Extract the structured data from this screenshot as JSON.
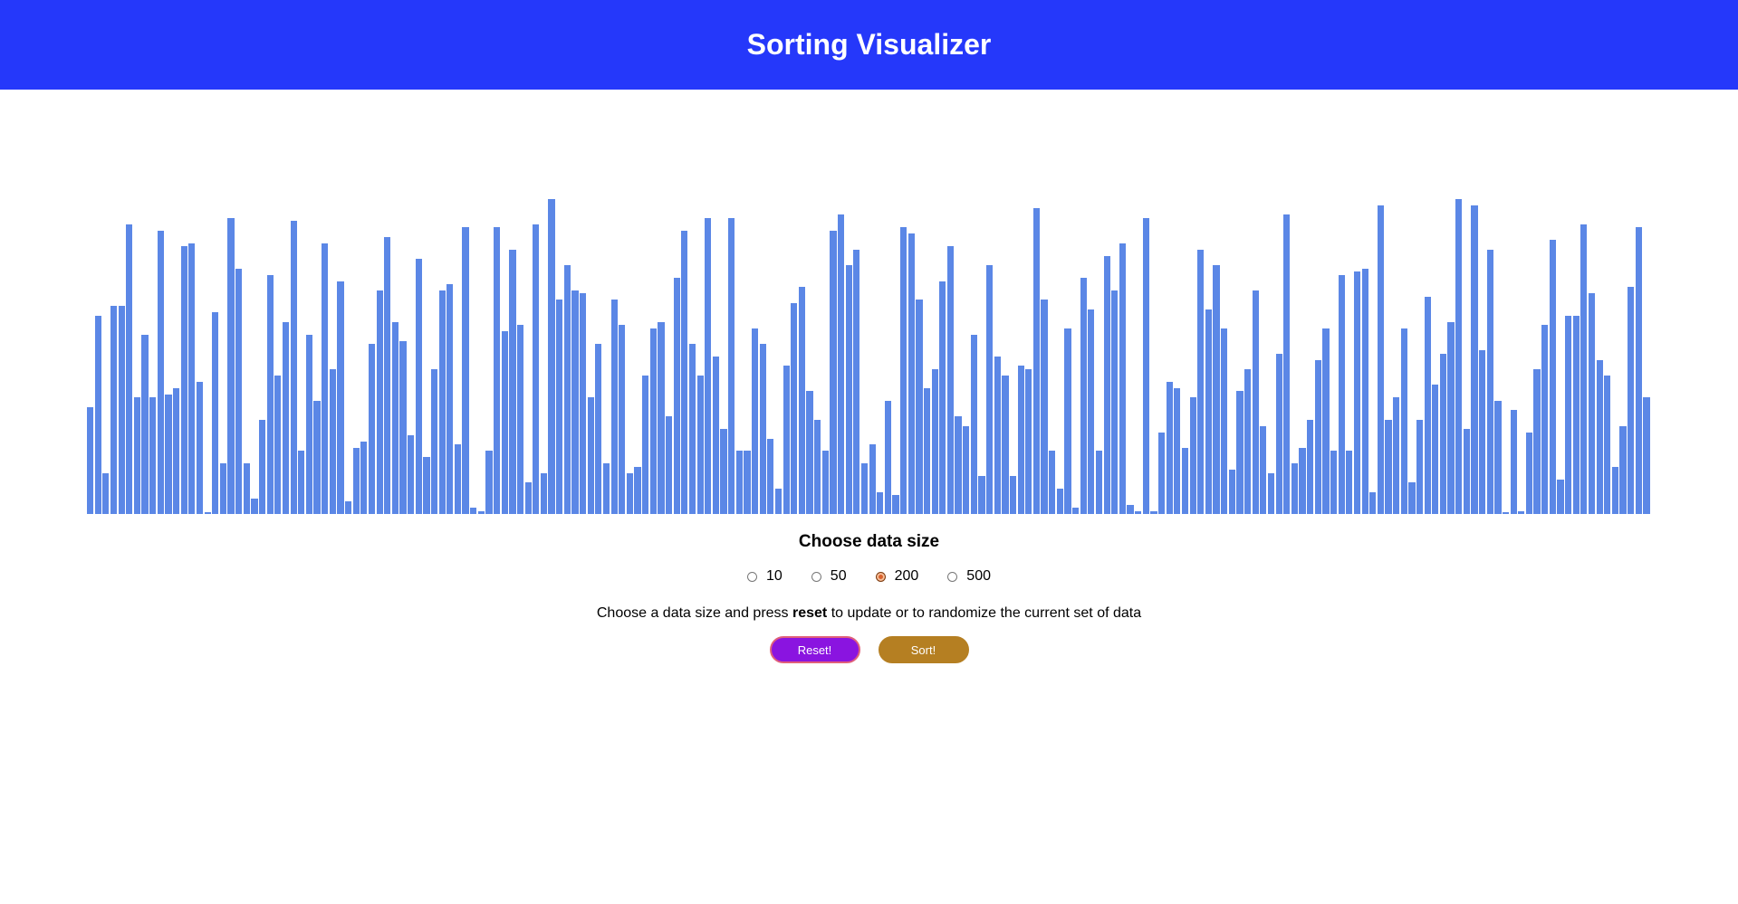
{
  "header": {
    "title": "Sorting Visualizer"
  },
  "colors": {
    "header": "#2538fa",
    "bar": "#5b87e6",
    "reset": "#8a14e0",
    "sort": "#b57f22"
  },
  "chart_data": {
    "type": "bar",
    "max": 1.0,
    "values": [
      0.34,
      0.63,
      0.13,
      0.66,
      0.66,
      0.92,
      0.37,
      0.57,
      0.37,
      0.9,
      0.38,
      0.4,
      0.85,
      0.86,
      0.42,
      0.005,
      0.64,
      0.16,
      0.94,
      0.78,
      0.16,
      0.05,
      0.3,
      0.76,
      0.44,
      0.61,
      0.93,
      0.2,
      0.57,
      0.36,
      0.86,
      0.46,
      0.74,
      0.04,
      0.21,
      0.23,
      0.54,
      0.71,
      0.88,
      0.61,
      0.55,
      0.25,
      0.81,
      0.18,
      0.46,
      0.71,
      0.73,
      0.22,
      0.91,
      0.02,
      0.01,
      0.2,
      0.91,
      0.58,
      0.84,
      0.6,
      0.1,
      0.92,
      0.13,
      1.0,
      0.68,
      0.79,
      0.71,
      0.7,
      0.37,
      0.54,
      0.16,
      0.68,
      0.6,
      0.13,
      0.15,
      0.44,
      0.59,
      0.61,
      0.31,
      0.75,
      0.9,
      0.54,
      0.44,
      0.94,
      0.5,
      0.27,
      0.94,
      0.2,
      0.2,
      0.59,
      0.54,
      0.24,
      0.08,
      0.47,
      0.67,
      0.72,
      0.39,
      0.3,
      0.2,
      0.9,
      0.95,
      0.79,
      0.84,
      0.16,
      0.22,
      0.07,
      0.36,
      0.06,
      0.91,
      0.89,
      0.68,
      0.4,
      0.46,
      0.74,
      0.85,
      0.31,
      0.28,
      0.57,
      0.12,
      0.79,
      0.5,
      0.44,
      0.12,
      0.47,
      0.46,
      0.97,
      0.68,
      0.2,
      0.08,
      0.59,
      0.02,
      0.75,
      0.65,
      0.2,
      0.82,
      0.71,
      0.86,
      0.03,
      0.01,
      0.94,
      0.01,
      0.26,
      0.42,
      0.4,
      0.21,
      0.37,
      0.84,
      0.65,
      0.79,
      0.59,
      0.14,
      0.39,
      0.46,
      0.71,
      0.28,
      0.13,
      0.51,
      0.95,
      0.16,
      0.21,
      0.3,
      0.49,
      0.59,
      0.2,
      0.76,
      0.2,
      0.77,
      0.78,
      0.07,
      0.98,
      0.3,
      0.37,
      0.59,
      0.1,
      0.3,
      0.69,
      0.41,
      0.51,
      0.61,
      1.0,
      0.27,
      0.98,
      0.52,
      0.84,
      0.36,
      0.005,
      0.33,
      0.01,
      0.26,
      0.46,
      0.6,
      0.87,
      0.11,
      0.63,
      0.63,
      0.92,
      0.7,
      0.49,
      0.44,
      0.15,
      0.28,
      0.72,
      0.91,
      0.37
    ]
  },
  "controls": {
    "title": "Choose data size",
    "sizes": [
      "10",
      "50",
      "200",
      "500"
    ],
    "selected": "200",
    "help_prefix": "Choose a data size and press ",
    "help_bold": "reset",
    "help_suffix": " to update or to randomize the current set of data",
    "reset_label": "Reset!",
    "sort_label": "Sort!"
  }
}
